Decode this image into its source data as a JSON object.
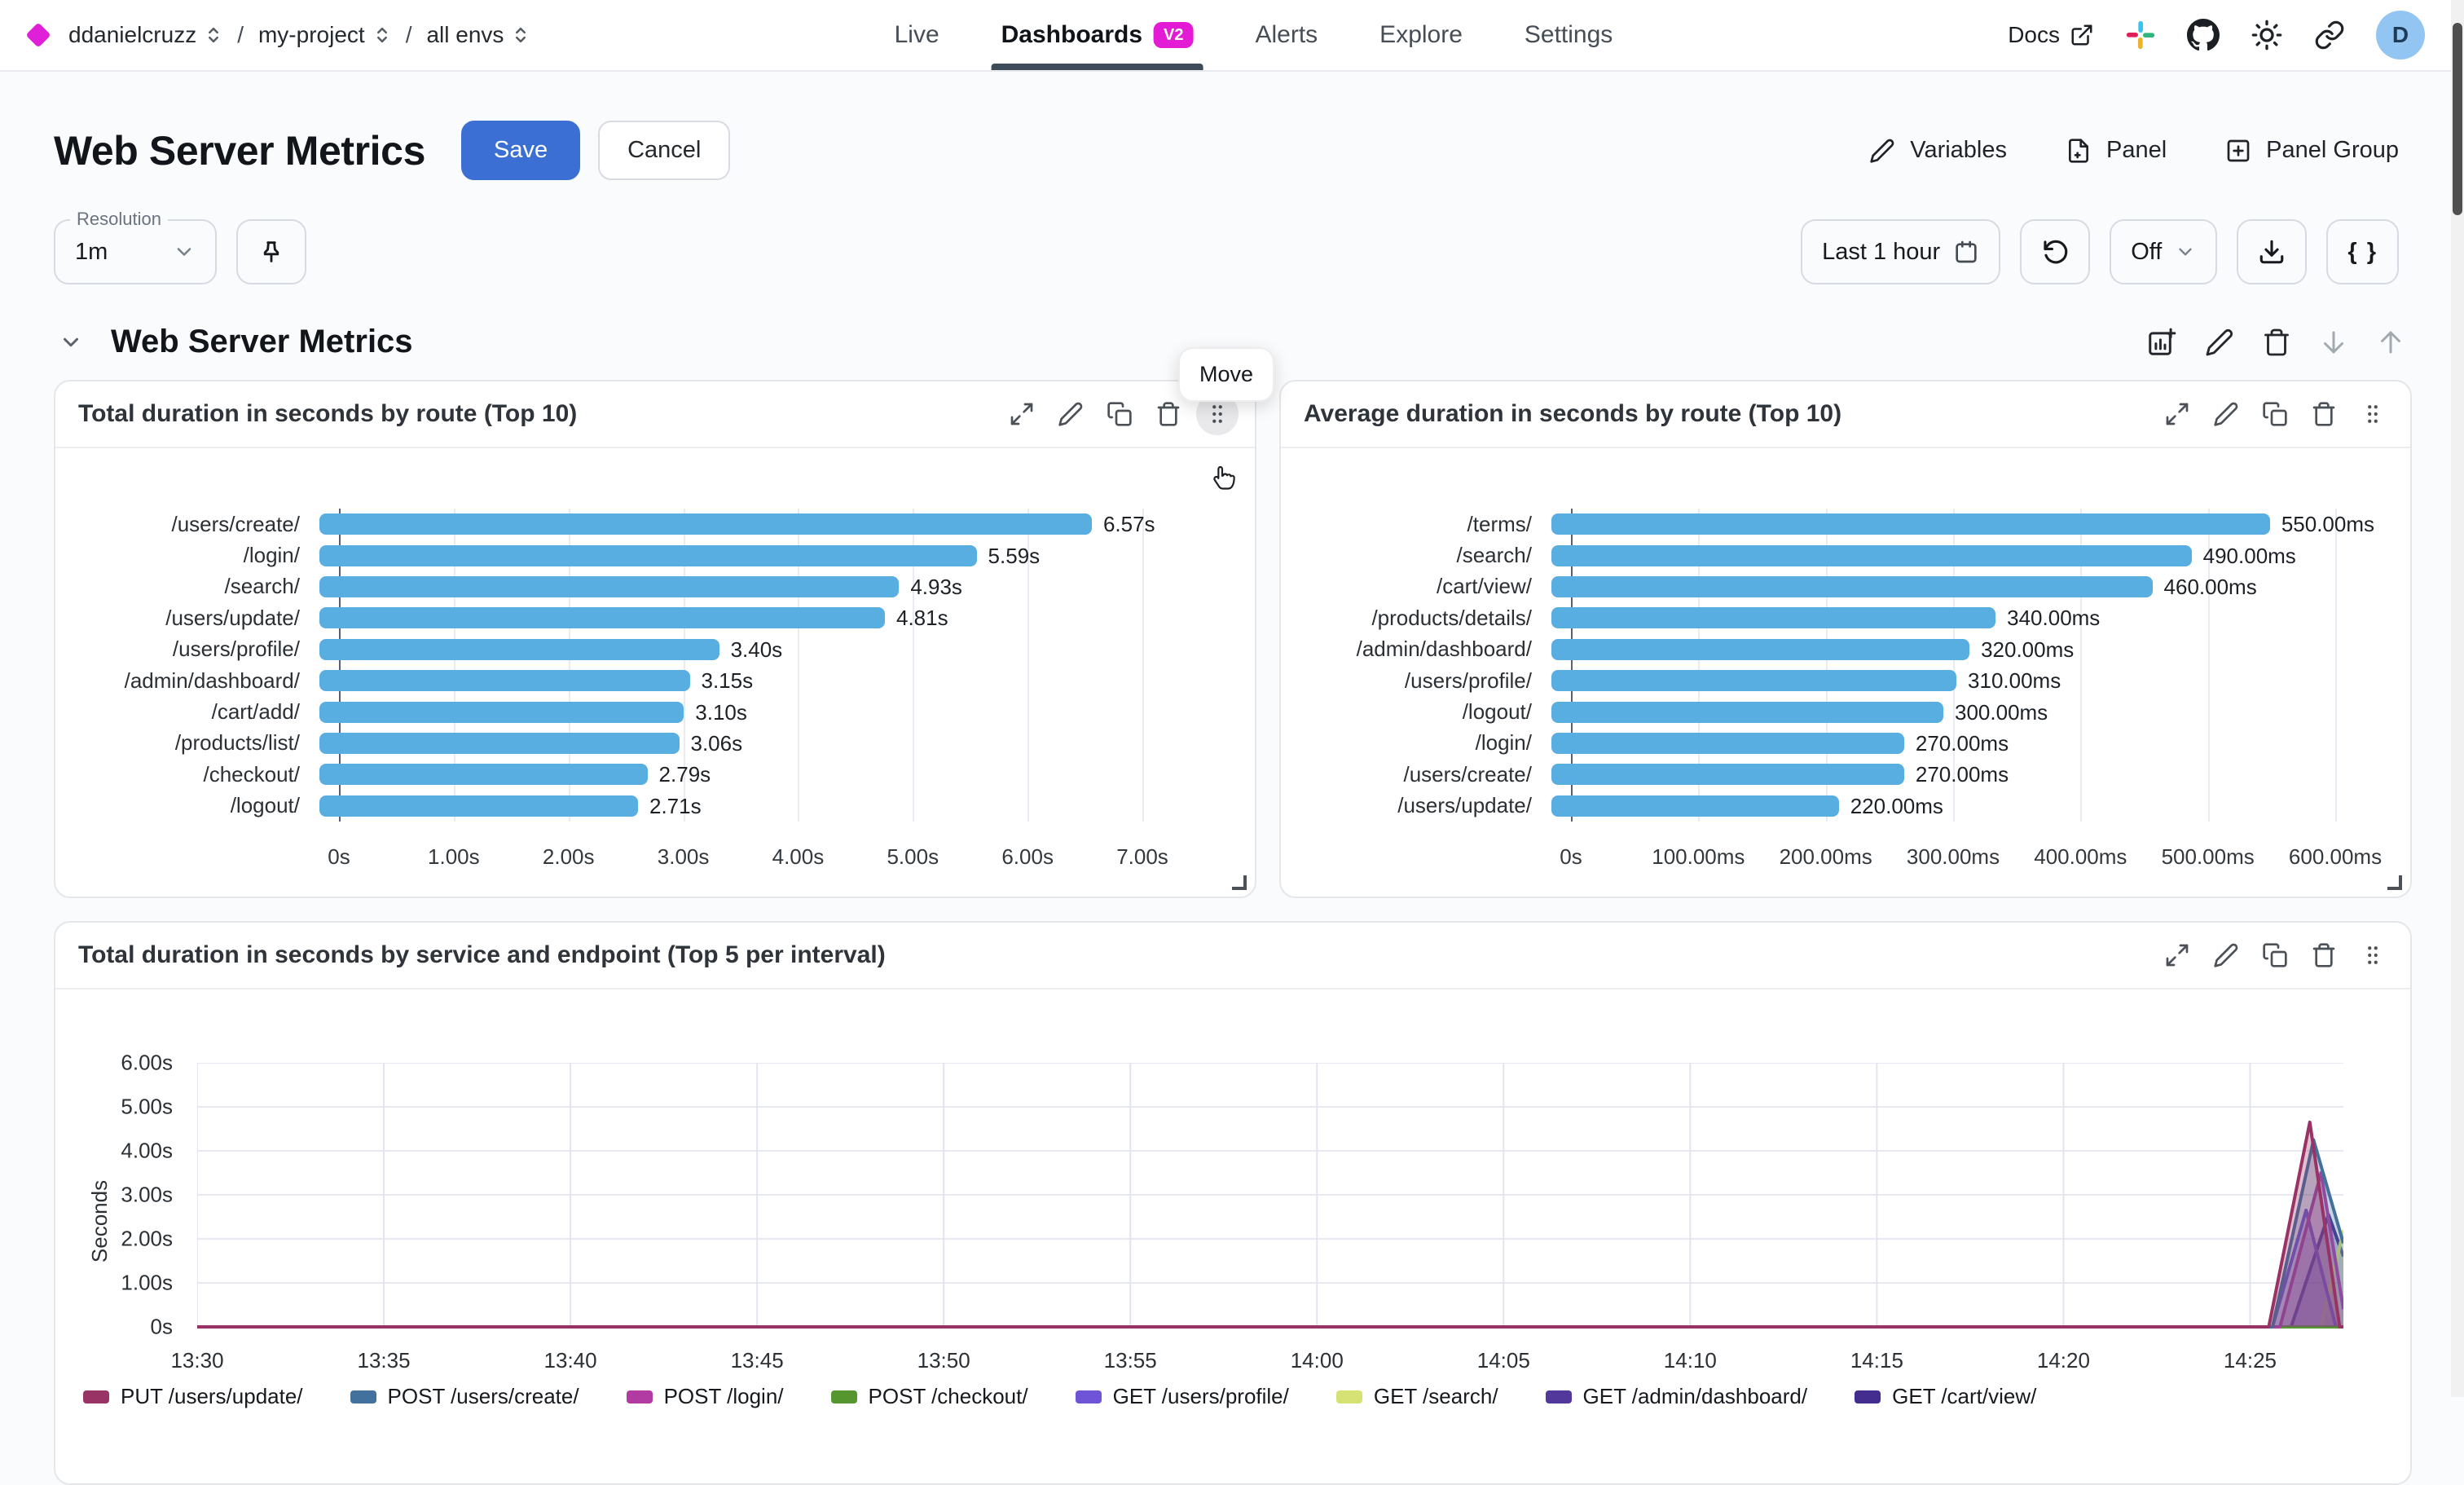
{
  "nav": {
    "breadcrumb": {
      "org": "ddanielcruzz",
      "project": "my-project",
      "env": "all envs",
      "separator": "/"
    },
    "items": [
      {
        "label": "Live"
      },
      {
        "label": "Dashboards",
        "badge": "V2"
      },
      {
        "label": "Alerts"
      },
      {
        "label": "Explore"
      },
      {
        "label": "Settings"
      }
    ],
    "docs_label": "Docs",
    "avatar_initial": "D"
  },
  "header": {
    "title": "Web Server Metrics",
    "save_label": "Save",
    "cancel_label": "Cancel",
    "variables_label": "Variables",
    "panel_label": "Panel",
    "panel_group_label": "Panel Group"
  },
  "toolbar": {
    "resolution_label": "Resolution",
    "resolution_value": "1m",
    "time_range": "Last 1 hour",
    "refresh_mode": "Off",
    "braces": "{ }"
  },
  "section": {
    "title": "Web Server Metrics",
    "move_tooltip": "Move"
  },
  "colors": {
    "accent_blue": "#3b6fd3",
    "badge_magenta": "#e41bd4",
    "bar_blue": "#58aee0"
  },
  "chart_data": [
    {
      "type": "bar",
      "orientation": "horizontal",
      "title": "Total duration in seconds by route (Top 10)",
      "categories": [
        "/users/create/",
        "/login/",
        "/search/",
        "/users/update/",
        "/users/profile/",
        "/admin/dashboard/",
        "/cart/add/",
        "/products/list/",
        "/checkout/",
        "/logout/"
      ],
      "values": [
        6.57,
        5.59,
        4.93,
        4.81,
        3.4,
        3.15,
        3.1,
        3.06,
        2.79,
        2.71
      ],
      "value_labels": [
        "6.57s",
        "5.59s",
        "4.93s",
        "4.81s",
        "3.40s",
        "3.15s",
        "3.10s",
        "3.06s",
        "2.79s",
        "2.71s"
      ],
      "x_ticks": [
        "0s",
        "1.00s",
        "2.00s",
        "3.00s",
        "4.00s",
        "5.00s",
        "6.00s",
        "7.00s"
      ],
      "xlim": [
        0,
        7
      ],
      "bar_color": "#58aee0"
    },
    {
      "type": "bar",
      "orientation": "horizontal",
      "title": "Average duration in seconds by route (Top 10)",
      "categories": [
        "/terms/",
        "/search/",
        "/cart/view/",
        "/products/details/",
        "/admin/dashboard/",
        "/users/profile/",
        "/logout/",
        "/login/",
        "/users/create/",
        "/users/update/"
      ],
      "values": [
        550,
        490,
        460,
        340,
        320,
        310,
        300,
        270,
        270,
        220
      ],
      "value_labels": [
        "550.00ms",
        "490.00ms",
        "460.00ms",
        "340.00ms",
        "320.00ms",
        "310.00ms",
        "300.00ms",
        "270.00ms",
        "270.00ms",
        "220.00ms"
      ],
      "x_ticks": [
        "0s",
        "100.00ms",
        "200.00ms",
        "300.00ms",
        "400.00ms",
        "500.00ms",
        "600.00ms"
      ],
      "xlim": [
        0,
        600
      ],
      "bar_color": "#58aee0"
    },
    {
      "type": "area",
      "title": "Total duration in seconds by service and endpoint (Top 5 per interval)",
      "ylabel": "Seconds",
      "y_ticks": [
        "0s",
        "1.00s",
        "2.00s",
        "3.00s",
        "4.00s",
        "5.00s",
        "6.00s"
      ],
      "ylim": [
        0,
        6
      ],
      "x_ticks": [
        "13:30",
        "13:35",
        "13:40",
        "13:45",
        "13:50",
        "13:55",
        "14:00",
        "14:05",
        "14:10",
        "14:15",
        "14:20",
        "14:25"
      ],
      "x_domain_minutes": [
        0,
        57.5
      ],
      "tick_interval_minutes": 5,
      "series": [
        {
          "name": "PUT /users/update/",
          "color": "#993366",
          "points": [
            [
              0,
              0
            ],
            [
              55.5,
              0
            ],
            [
              56.6,
              4.65
            ],
            [
              57.4,
              0
            ],
            [
              57.5,
              0
            ]
          ]
        },
        {
          "name": "POST /users/create/",
          "color": "#41719c",
          "points": [
            [
              0,
              0
            ],
            [
              55.6,
              0
            ],
            [
              56.7,
              4.25
            ],
            [
              57.5,
              1.9
            ]
          ]
        },
        {
          "name": "POST /login/",
          "color": "#b13ba3",
          "points": [
            [
              0,
              0
            ],
            [
              55.8,
              0
            ],
            [
              56.9,
              3.5
            ],
            [
              57.5,
              0.4
            ]
          ]
        },
        {
          "name": "POST /checkout/",
          "color": "#55962f",
          "points": [
            [
              0,
              0
            ],
            [
              57.5,
              0
            ]
          ]
        },
        {
          "name": "GET /users/profile/",
          "color": "#6f54d8",
          "points": [
            [
              0,
              0
            ],
            [
              55.6,
              0
            ],
            [
              56.5,
              2.65
            ],
            [
              57.3,
              0
            ],
            [
              57.5,
              0
            ]
          ]
        },
        {
          "name": "GET /search/",
          "color": "#d6e374",
          "points": [
            [
              0,
              0
            ],
            [
              56.9,
              0
            ],
            [
              57.5,
              2.2
            ]
          ]
        },
        {
          "name": "GET /admin/dashboard/",
          "color": "#53389b",
          "points": [
            [
              0,
              0
            ],
            [
              57.5,
              0
            ]
          ]
        },
        {
          "name": "GET /cart/view/",
          "color": "#432d8e",
          "points": [
            [
              0,
              0
            ],
            [
              56.1,
              0
            ],
            [
              57.1,
              2.55
            ],
            [
              57.5,
              1.6
            ]
          ]
        }
      ]
    }
  ]
}
